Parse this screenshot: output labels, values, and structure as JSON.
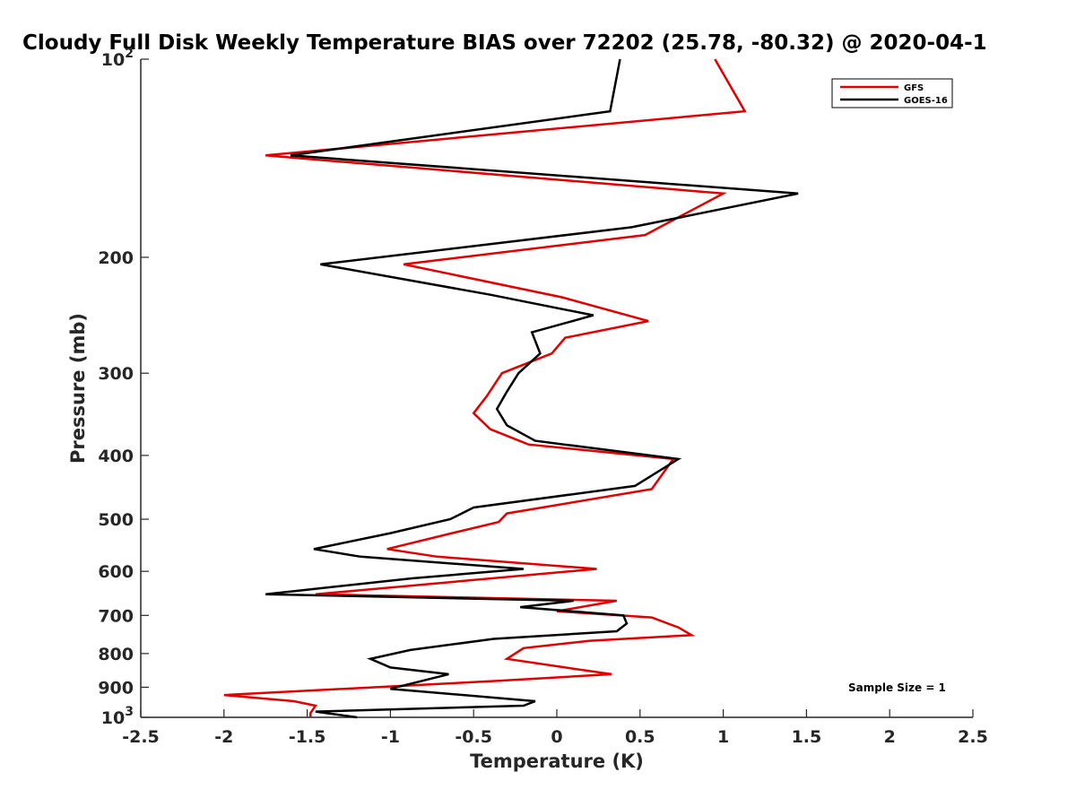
{
  "chart_data": {
    "type": "line",
    "title": "Cloudy Full Disk Weekly Temperature BIAS over 72202 (25.78, -80.32) @ 2020-04-1",
    "xlabel": "Temperature (K)",
    "ylabel": "Pressure (mb)",
    "xlim": [
      -2.5,
      2.5
    ],
    "ylim": [
      100,
      1000
    ],
    "y_scale": "log",
    "y_reversed": true,
    "grid": false,
    "legend_position": "top-right",
    "xticks": [
      {
        "value": -2.5,
        "label": "-2.5"
      },
      {
        "value": -2,
        "label": "-2"
      },
      {
        "value": -1.5,
        "label": "-1.5"
      },
      {
        "value": -1,
        "label": "-1"
      },
      {
        "value": -0.5,
        "label": "-0.5"
      },
      {
        "value": 0,
        "label": "0"
      },
      {
        "value": 0.5,
        "label": "0.5"
      },
      {
        "value": 1,
        "label": "1"
      },
      {
        "value": 1.5,
        "label": "1.5"
      },
      {
        "value": 2,
        "label": "2"
      },
      {
        "value": 2.5,
        "label": "2.5"
      }
    ],
    "yticks": [
      {
        "value": 100,
        "label": "10",
        "sup": "2"
      },
      {
        "value": 200,
        "label": "200"
      },
      {
        "value": 300,
        "label": "300"
      },
      {
        "value": 400,
        "label": "400"
      },
      {
        "value": 500,
        "label": "500"
      },
      {
        "value": 600,
        "label": "600"
      },
      {
        "value": 700,
        "label": "700"
      },
      {
        "value": 800,
        "label": "800"
      },
      {
        "value": 900,
        "label": "900"
      },
      {
        "value": 1000,
        "label": "10",
        "sup": "3"
      }
    ],
    "annotation": "Sample Size = 1",
    "series": [
      {
        "name": "GFS",
        "color": "#e00000",
        "points": [
          [
            0.95,
            100
          ],
          [
            1.13,
            120
          ],
          [
            -1.75,
            140
          ],
          [
            1.0,
            160
          ],
          [
            0.53,
            185
          ],
          [
            -0.92,
            205
          ],
          [
            0.03,
            230
          ],
          [
            0.55,
            250
          ],
          [
            0.05,
            265
          ],
          [
            -0.03,
            280
          ],
          [
            -0.33,
            300
          ],
          [
            -0.42,
            325
          ],
          [
            -0.5,
            345
          ],
          [
            -0.4,
            365
          ],
          [
            -0.17,
            385
          ],
          [
            0.7,
            405
          ],
          [
            0.57,
            450
          ],
          [
            -0.3,
            490
          ],
          [
            -0.35,
            505
          ],
          [
            -0.63,
            525
          ],
          [
            -1.02,
            555
          ],
          [
            -0.72,
            570
          ],
          [
            0.24,
            595
          ],
          [
            -1.45,
            650
          ],
          [
            0.36,
            665
          ],
          [
            0.0,
            690
          ],
          [
            0.57,
            705
          ],
          [
            0.73,
            730
          ],
          [
            0.81,
            750
          ],
          [
            0.2,
            765
          ],
          [
            -0.2,
            785
          ],
          [
            -0.3,
            815
          ],
          [
            0.05,
            840
          ],
          [
            0.33,
            860
          ],
          [
            -0.35,
            880
          ],
          [
            -2.0,
            925
          ],
          [
            -1.58,
            945
          ],
          [
            -1.45,
            960
          ],
          [
            -1.48,
            985
          ],
          [
            -1.48,
            1000
          ]
        ]
      },
      {
        "name": "GOES-16",
        "color": "#000000",
        "points": [
          [
            0.38,
            100
          ],
          [
            0.32,
            120
          ],
          [
            -1.6,
            140
          ],
          [
            1.45,
            160
          ],
          [
            0.45,
            180
          ],
          [
            -1.42,
            205
          ],
          [
            -0.4,
            228
          ],
          [
            0.22,
            245
          ],
          [
            -0.15,
            260
          ],
          [
            -0.1,
            280
          ],
          [
            -0.23,
            300
          ],
          [
            -0.3,
            320
          ],
          [
            -0.36,
            340
          ],
          [
            -0.3,
            360
          ],
          [
            -0.13,
            380
          ],
          [
            0.73,
            405
          ],
          [
            0.47,
            445
          ],
          [
            -0.5,
            480
          ],
          [
            -0.64,
            500
          ],
          [
            -1.0,
            525
          ],
          [
            -1.46,
            555
          ],
          [
            -1.18,
            570
          ],
          [
            -0.2,
            595
          ],
          [
            -0.87,
            615
          ],
          [
            -1.75,
            650
          ],
          [
            0.1,
            665
          ],
          [
            -0.22,
            680
          ],
          [
            0.4,
            700
          ],
          [
            0.42,
            720
          ],
          [
            0.36,
            740
          ],
          [
            -0.38,
            760
          ],
          [
            -0.88,
            790
          ],
          [
            -1.12,
            815
          ],
          [
            -1.0,
            840
          ],
          [
            -0.65,
            860
          ],
          [
            -1.0,
            905
          ],
          [
            -0.13,
            945
          ],
          [
            -0.2,
            960
          ],
          [
            -1.45,
            980
          ],
          [
            -1.2,
            1000
          ]
        ]
      }
    ]
  }
}
